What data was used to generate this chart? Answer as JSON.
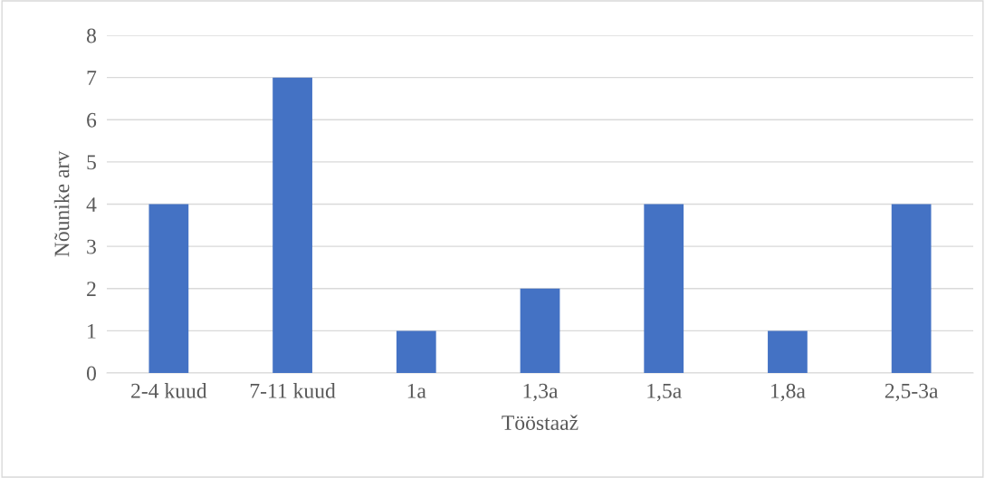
{
  "chart_data": {
    "type": "bar",
    "xlabel": "Tööstaaž",
    "ylabel": "Nõunike arv",
    "categories": [
      "2-4 kuud",
      "7-11 kuud",
      "1a",
      "1,3a",
      "1,5a",
      "1,8a",
      "2,5-3a"
    ],
    "values": [
      4,
      7,
      1,
      2,
      4,
      1,
      4
    ],
    "color": "#4472c4",
    "ylim": [
      0,
      8
    ],
    "yticks": [
      0,
      1,
      2,
      3,
      4,
      5,
      6,
      7,
      8
    ],
    "grid": "y"
  }
}
